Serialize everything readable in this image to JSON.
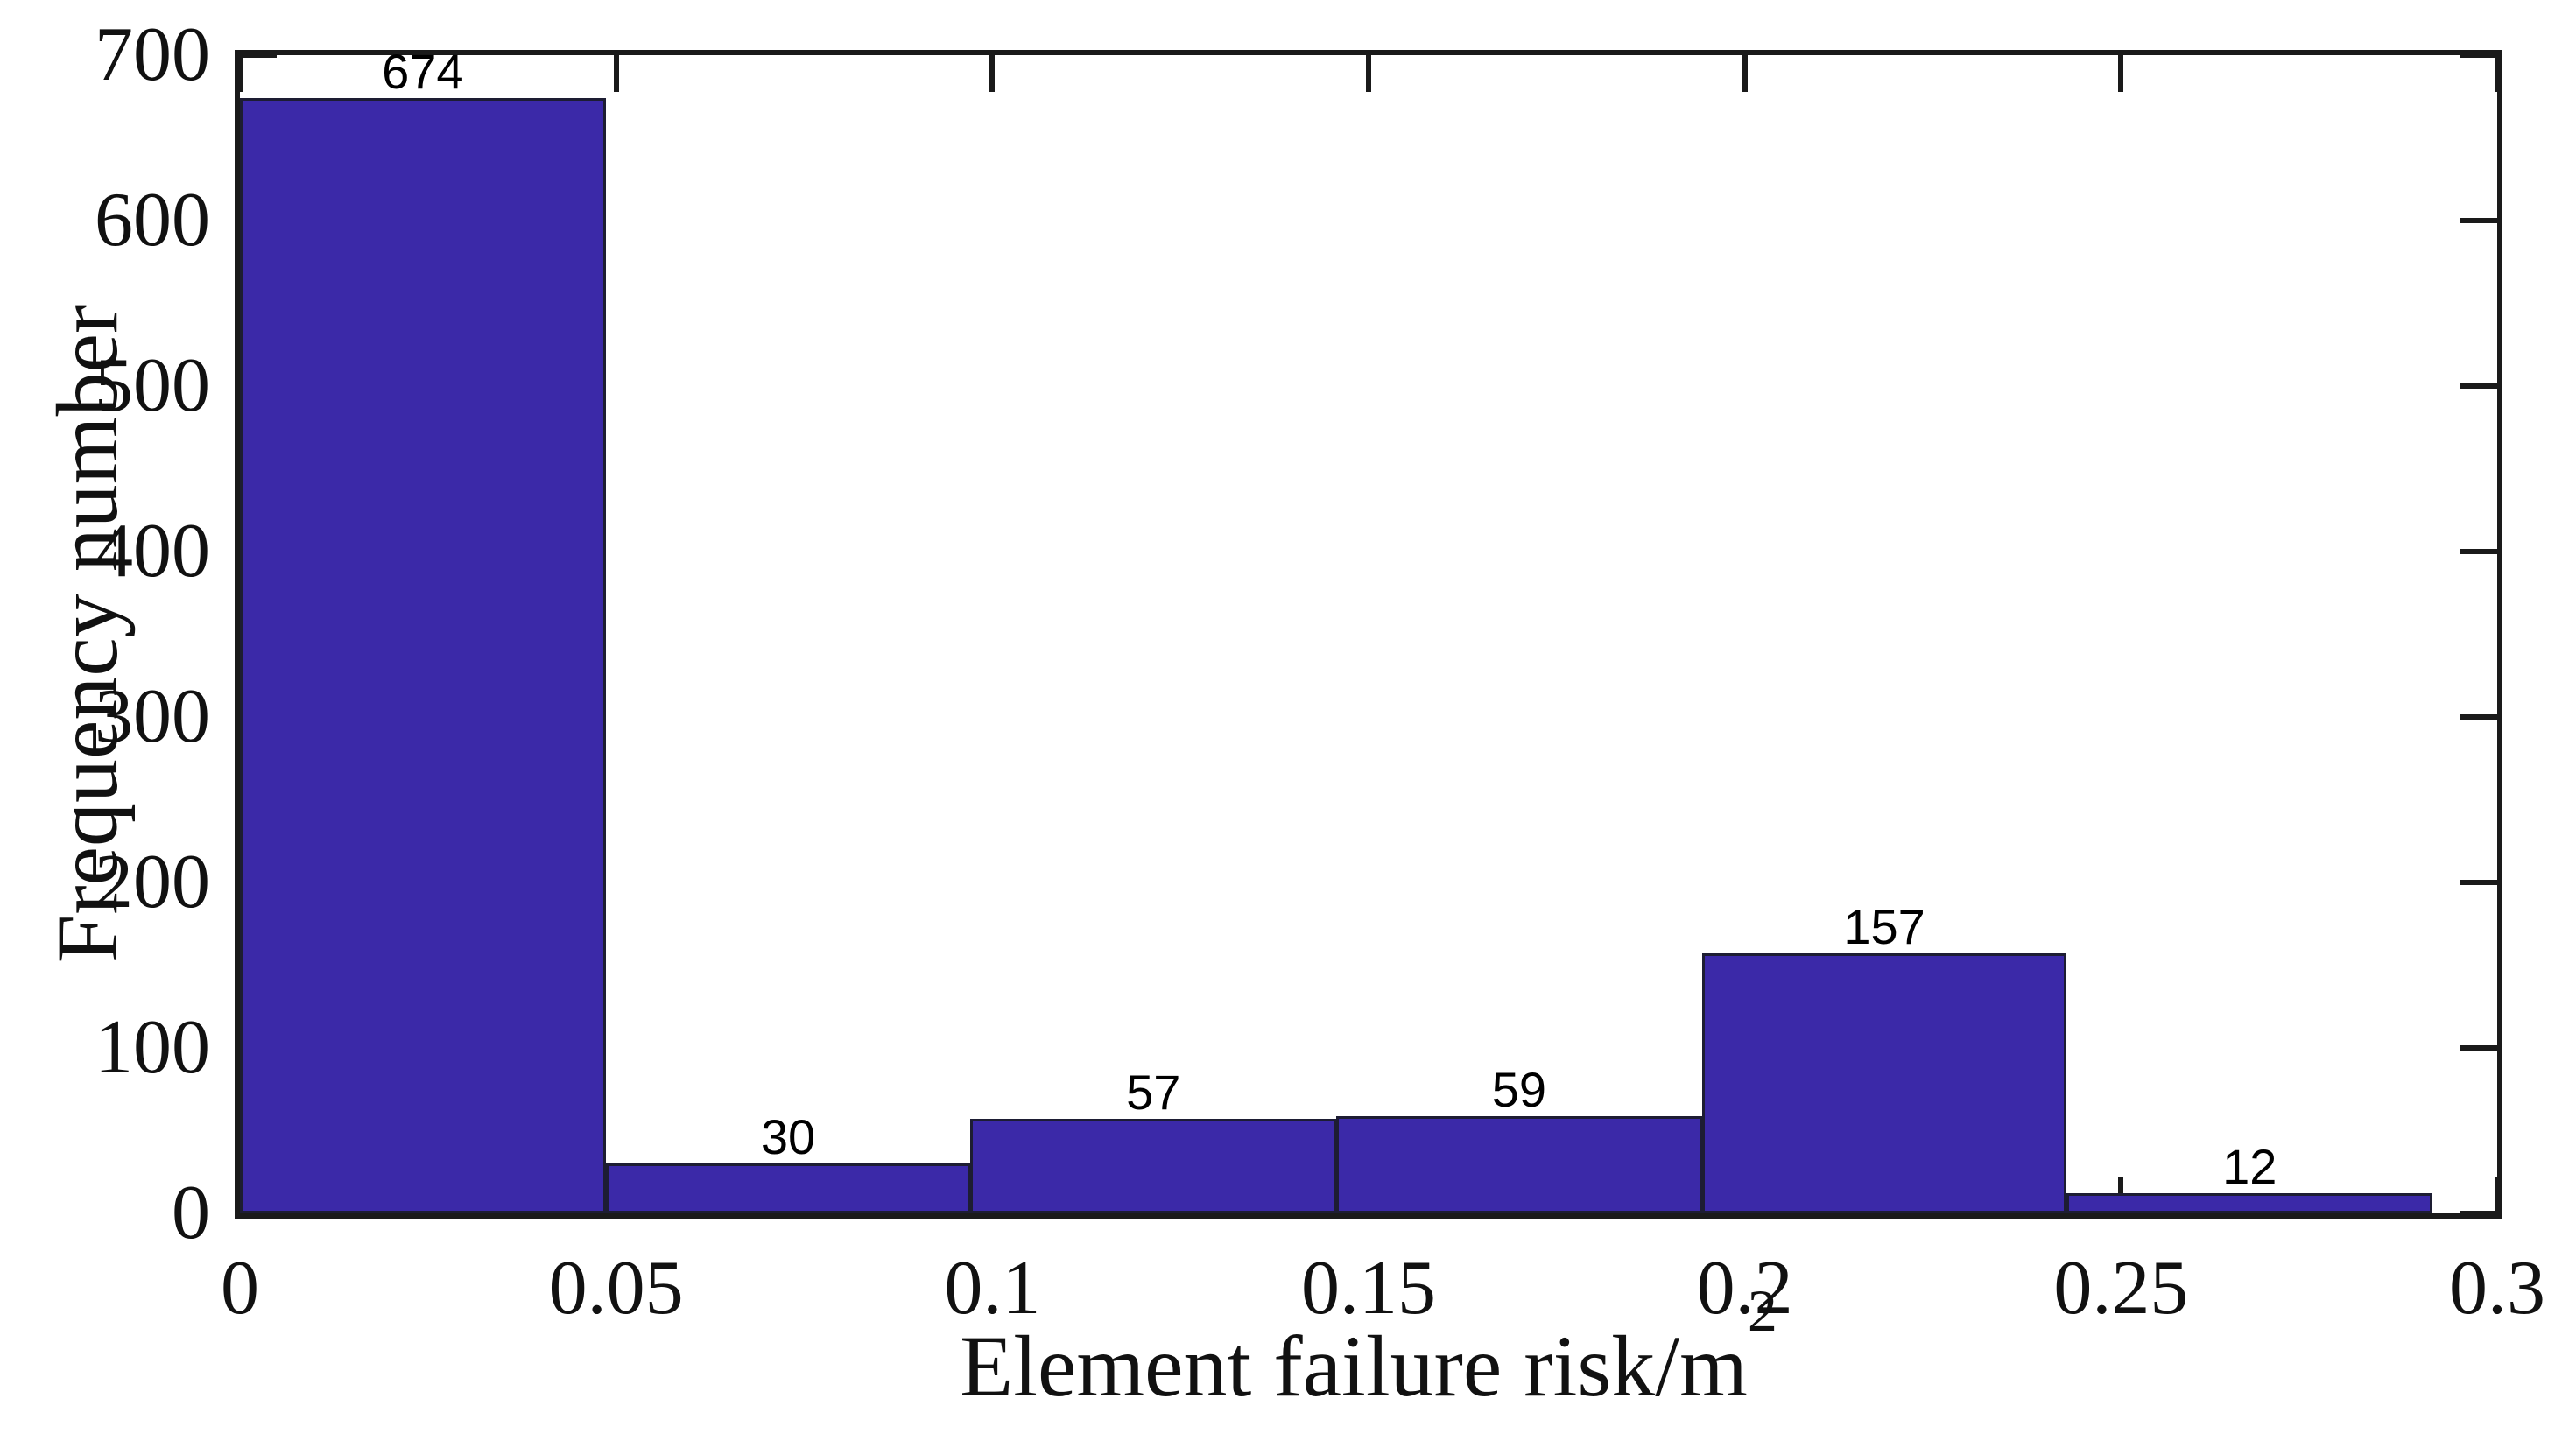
{
  "figure": {
    "background_color": "#ffffff",
    "xlabel_text": "Element failure risk/m",
    "xlabel_superscript": "2",
    "ylabel_text": "Frequency number"
  },
  "chart_data": {
    "type": "bar",
    "subtype": "histogram",
    "title": "",
    "xlabel": "Element failure risk/m",
    "xlabel_superscript": "2",
    "ylabel": "Frequency number",
    "xlim": [
      0,
      0.3
    ],
    "ylim": [
      0,
      700
    ],
    "x_tick_values": [
      0,
      0.05,
      0.1,
      0.15,
      0.2,
      0.25,
      0.3
    ],
    "x_tick_labels": [
      "0",
      "0.05",
      "0.1",
      "0.15",
      "0.2",
      "0.25",
      "0.3"
    ],
    "y_tick_values": [
      0,
      100,
      200,
      300,
      400,
      500,
      600,
      700
    ],
    "y_tick_labels": [
      "0",
      "100",
      "200",
      "300",
      "400",
      "500",
      "600",
      "700"
    ],
    "bin_edges": [
      0,
      0.0486,
      0.0971,
      0.1457,
      0.1943,
      0.2428,
      0.2914
    ],
    "counts": [
      674,
      30,
      57,
      59,
      157,
      12
    ],
    "bar_labels": [
      "674",
      "30",
      "57",
      "59",
      "157",
      "12"
    ],
    "bar_color": "#3b29a8",
    "bar_edge_color": "#1d1d33",
    "axis_color": "#1a1a1a",
    "grid": false,
    "legend": null,
    "tick_direction": "in",
    "box": true
  }
}
